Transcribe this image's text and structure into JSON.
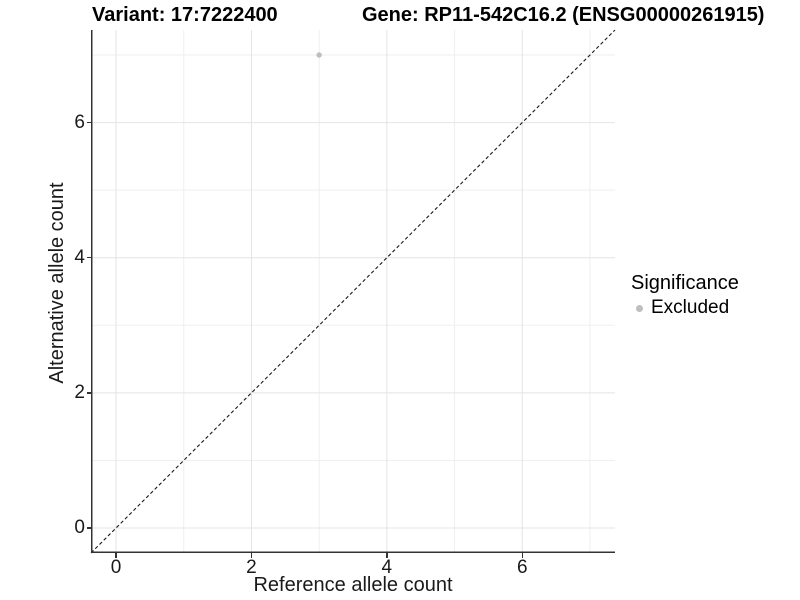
{
  "header": {
    "variant_title": "Variant: 17:7222400",
    "gene_title": "Gene: RP11-542C16.2 (ENSG00000261915)"
  },
  "legend": {
    "title": "Significance",
    "items": [
      {
        "label": "Excluded",
        "color": "#bebebe"
      }
    ]
  },
  "chart_data": {
    "type": "scatter",
    "title": "Variant: 17:7222400   Gene: RP11-542C16.2 (ENSG00000261915)",
    "xlabel": "Reference allele count",
    "ylabel": "Alternative allele count",
    "xlim": [
      -0.37,
      7.37
    ],
    "ylim": [
      -0.37,
      7.37
    ],
    "x_ticks": [
      0,
      2,
      4,
      6
    ],
    "y_ticks": [
      0,
      2,
      4,
      6
    ],
    "x_minor_ticks": [
      1,
      3,
      5,
      7
    ],
    "y_minor_ticks": [
      1,
      3,
      5,
      7
    ],
    "grid": true,
    "legend_position": "right",
    "series": [
      {
        "name": "Excluded",
        "color": "#bebebe",
        "points": [
          {
            "x": 3,
            "y": 7
          }
        ]
      }
    ],
    "reference_line": {
      "type": "identity",
      "slope": 1,
      "intercept": 0,
      "style": "dashed",
      "color": "#1a1a1a"
    }
  },
  "style": {
    "panel_background": "#ffffff",
    "grid_major_color": "#e4e4e4",
    "grid_minor_color": "#efefef",
    "axis_line_color": "#333333",
    "axis_text_color": "#1a1a1a",
    "title_color": "#000000"
  }
}
